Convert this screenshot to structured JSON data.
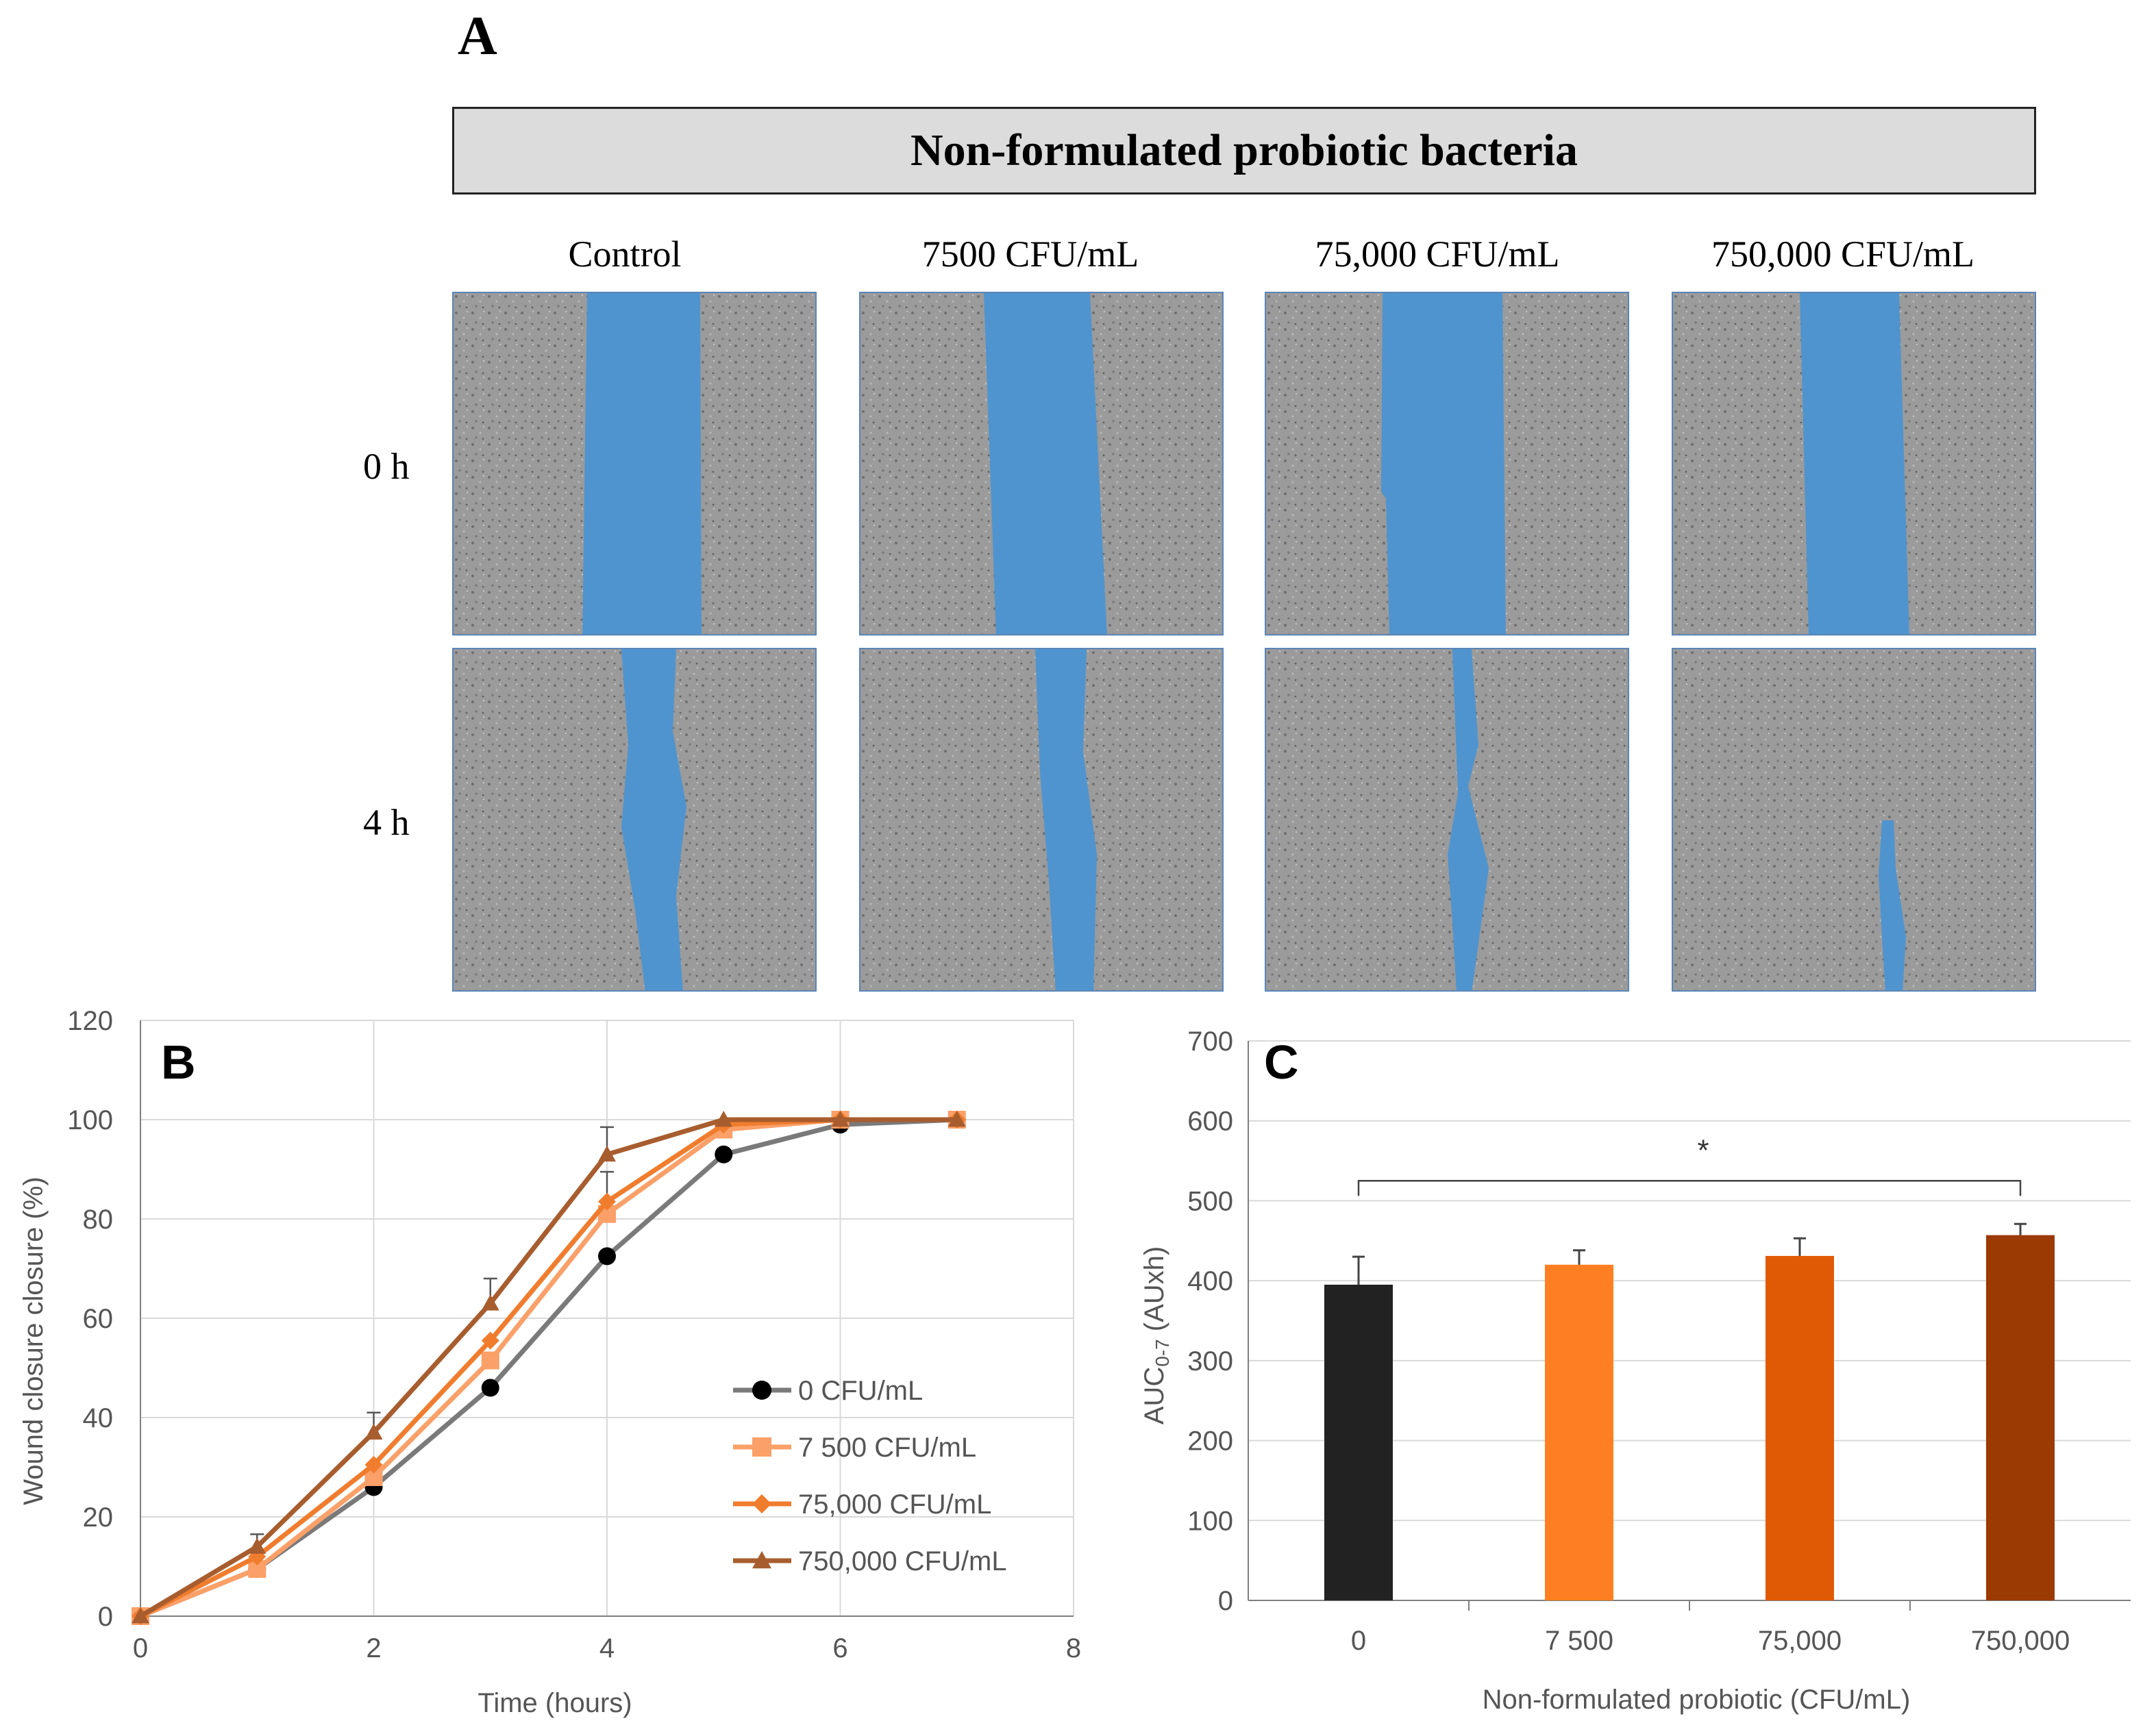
{
  "panel_a": {
    "letter": "A",
    "banner": "Non-formulated probiotic bacteria",
    "columns": [
      "Control",
      "7500 CFU/mL",
      "75,000 CFU/mL",
      "750,000 CFU/mL"
    ],
    "rows": [
      "0 h",
      "4 h"
    ]
  },
  "colors": {
    "wound": "#4f94cf",
    "series": [
      "#000000",
      "#fba068",
      "#f07d2e",
      "#a85d2e"
    ],
    "bars": [
      "#222222",
      "#fd7f22",
      "#e05a06",
      "#9b3a03"
    ],
    "grid": "#d9d9d9",
    "axis": "#7f7f7f"
  },
  "chart_data": [
    {
      "panel": "B",
      "type": "line",
      "title": "",
      "xlabel": "Time (hours)",
      "ylabel": "Wound closure closure (%)",
      "xlim": [
        0,
        8
      ],
      "ylim": [
        0,
        120
      ],
      "xticks": [
        0,
        2,
        4,
        6,
        8
      ],
      "yticks": [
        0,
        20,
        40,
        60,
        80,
        100,
        120
      ],
      "grid": true,
      "legend_position": "bottom-right",
      "x": [
        0,
        1,
        2,
        3,
        4,
        5,
        6,
        7
      ],
      "series": [
        {
          "name": "0 CFU/mL",
          "marker": "circle",
          "values": [
            0,
            9.5,
            26,
            46,
            72.5,
            93,
            99,
            100
          ],
          "errors": [
            0,
            0,
            0,
            0,
            0,
            0,
            0,
            0
          ]
        },
        {
          "name": "7 500 CFU/mL",
          "marker": "square",
          "values": [
            0,
            9.5,
            28,
            51.5,
            81,
            98,
            100,
            100
          ],
          "errors": [
            0,
            0,
            0,
            0,
            0,
            0,
            0,
            0
          ]
        },
        {
          "name": "75,000 CFU/mL",
          "marker": "diamond",
          "values": [
            0,
            12,
            30.5,
            55.5,
            83.5,
            99,
            100,
            100
          ],
          "errors": [
            0,
            0,
            0,
            0,
            6,
            0,
            0,
            0
          ]
        },
        {
          "name": "750,000 CFU/mL",
          "marker": "triangle",
          "values": [
            0,
            14,
            37,
            63,
            93,
            100,
            100,
            100
          ],
          "errors": [
            0,
            2.5,
            4,
            5,
            5.5,
            0,
            0,
            0
          ]
        }
      ]
    },
    {
      "panel": "C",
      "type": "bar",
      "title": "",
      "xlabel": "Non-formulated probiotic (CFU/mL)",
      "ylabel_main": "AUC",
      "ylabel_sub": "0-7",
      "ylabel_unit": " (AUxh)",
      "categories": [
        "0",
        "7 500",
        "75,000",
        "750,000"
      ],
      "values": [
        395,
        420,
        431,
        457
      ],
      "errors": [
        35,
        18,
        22,
        14
      ],
      "ylim": [
        0,
        700
      ],
      "yticks": [
        0,
        100,
        200,
        300,
        400,
        500,
        600,
        700
      ],
      "grid": true,
      "significance": {
        "from": 0,
        "to": 3,
        "label": "*"
      }
    }
  ]
}
